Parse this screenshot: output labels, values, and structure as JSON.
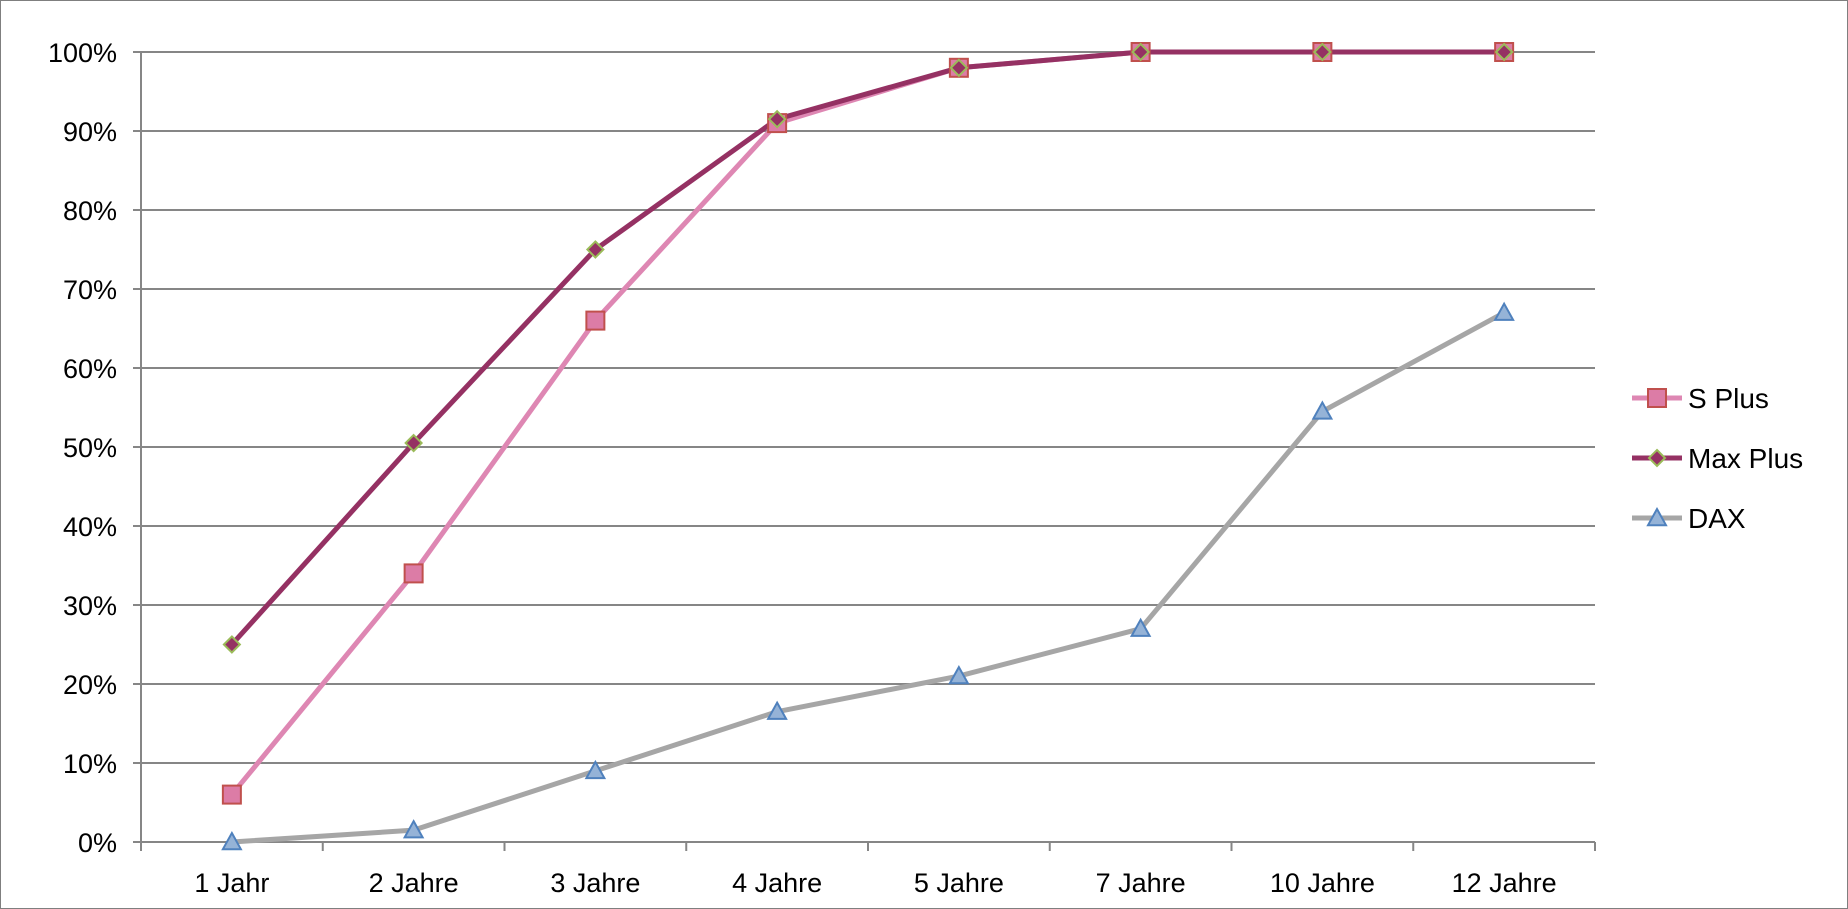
{
  "chart_data": {
    "type": "line",
    "categories": [
      "1 Jahr",
      "2 Jahre",
      "3 Jahre",
      "4 Jahre",
      "5 Jahre",
      "7 Jahre",
      "10 Jahre",
      "12 Jahre"
    ],
    "y_ticks": [
      "0%",
      "10%",
      "20%",
      "30%",
      "40%",
      "50%",
      "60%",
      "70%",
      "80%",
      "90%",
      "100%"
    ],
    "ylim": [
      0,
      100
    ],
    "grid": "horizontal",
    "legend": "right",
    "series": [
      {
        "name": "S Plus",
        "values": [
          6,
          34,
          66,
          91,
          98,
          100,
          100,
          100
        ],
        "color": "#de87b3",
        "marker": "square",
        "marker_fill": "#dc7ca6",
        "marker_stroke": "#c0504d"
      },
      {
        "name": "Max Plus",
        "values": [
          25,
          50.5,
          75,
          91.5,
          98,
          100,
          100,
          100
        ],
        "color": "#953163",
        "marker": "diamond",
        "marker_fill": "#953163",
        "marker_stroke": "#9bbb59"
      },
      {
        "name": "DAX",
        "values": [
          0,
          1.5,
          9,
          16.5,
          21,
          27,
          54.5,
          67
        ],
        "color": "#a6a6a6",
        "marker": "triangle",
        "marker_fill": "#95b3d7",
        "marker_stroke": "#4f81bd"
      }
    ]
  }
}
